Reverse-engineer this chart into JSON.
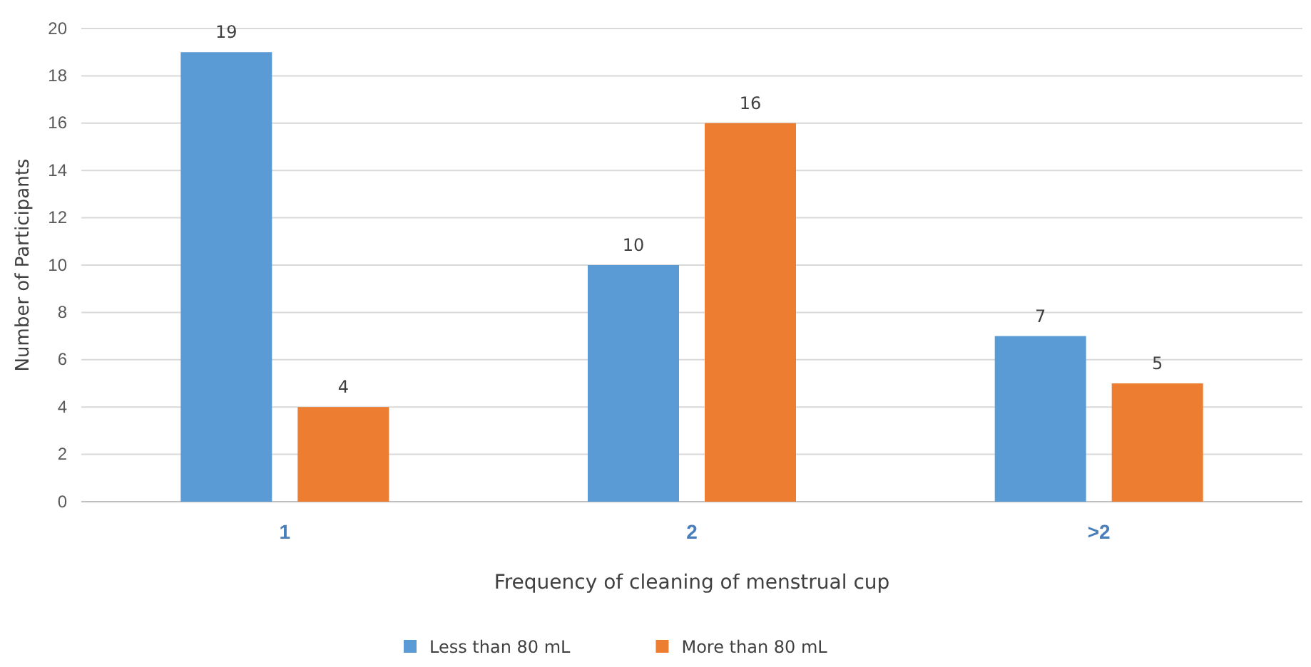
{
  "chart_data": {
    "type": "bar",
    "xlabel": "Frequency of cleaning of menstrual cup",
    "ylabel": "Number of Participants",
    "categories": [
      "1",
      "2",
      ">2"
    ],
    "series": [
      {
        "name": "Less than 80 mL",
        "color": "#5b9bd5",
        "values": [
          19,
          10,
          7
        ]
      },
      {
        "name": "More than 80 mL",
        "color": "#ed7d31",
        "values": [
          4,
          16,
          5
        ]
      }
    ],
    "ylim": [
      0,
      20
    ],
    "yticks": [
      0,
      2,
      4,
      6,
      8,
      10,
      12,
      14,
      16,
      18,
      20
    ],
    "grid": "y",
    "legend": "bottom",
    "data_labels": true
  }
}
